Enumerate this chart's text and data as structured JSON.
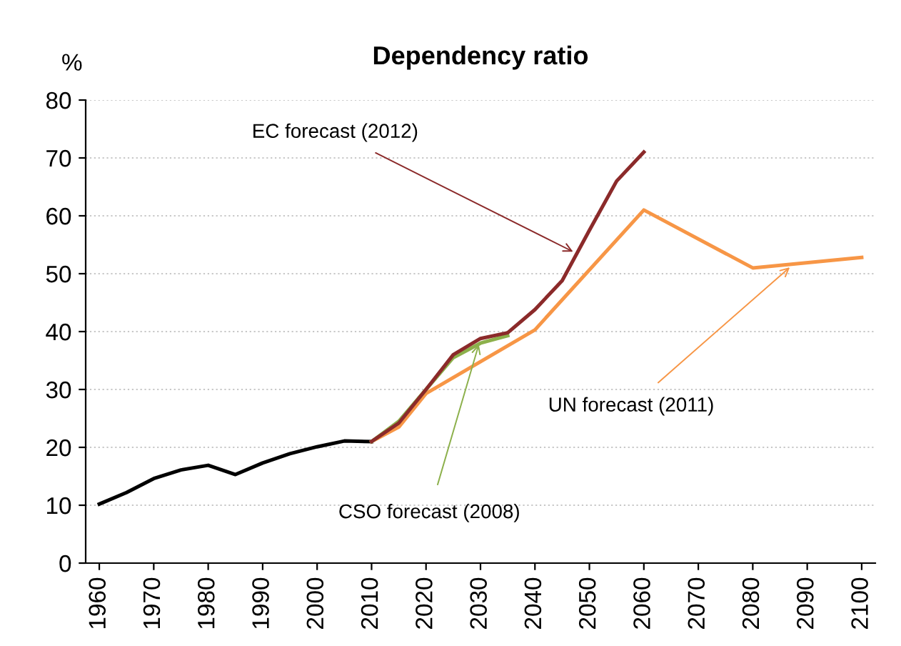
{
  "chart_data": {
    "type": "line",
    "title": "Dependency ratio",
    "ylabel": "%",
    "xlim": [
      1957.5,
      2102.5
    ],
    "xticks": [
      1960,
      1970,
      1980,
      1990,
      2000,
      2010,
      2020,
      2030,
      2040,
      2050,
      2060,
      2070,
      2080,
      2090,
      2100
    ],
    "ylim": [
      0,
      80
    ],
    "yticks": [
      0,
      10,
      20,
      30,
      40,
      50,
      60,
      70,
      80
    ],
    "grid": "y",
    "legend": false,
    "series": [
      {
        "color": "#000000",
        "x": [
          1960,
          1965,
          1970,
          1975,
          1980,
          1985,
          1990,
          1995,
          2000,
          2005,
          2010
        ],
        "values": [
          10.2,
          12.2,
          14.6,
          16.1,
          16.9,
          15.3,
          17.3,
          18.9,
          20.1,
          21.1,
          21.0
        ]
      },
      {
        "color": "#f79646",
        "x": [
          2010,
          2015,
          2020,
          2040,
          2060,
          2080,
          2100
        ],
        "values": [
          21.0,
          23.5,
          29.3,
          40.3,
          61,
          51,
          52.8
        ]
      },
      {
        "color": "#8cb04b",
        "x": [
          2010,
          2015,
          2020,
          2025,
          2030,
          2035
        ],
        "values": [
          21.0,
          24.5,
          30,
          35.5,
          38,
          39.3
        ]
      },
      {
        "color": "#8b2a2a",
        "x": [
          2010,
          2015,
          2020,
          2025,
          2030,
          2035,
          2040,
          2045,
          2050,
          2055,
          2060
        ],
        "values": [
          21.0,
          24.2,
          30,
          36,
          38.8,
          39.8,
          43.8,
          48.8,
          57.5,
          66,
          71
        ]
      }
    ],
    "annotations": [
      {
        "text": "EC forecast (2012)",
        "x": 2047,
        "y": 53.8
      },
      {
        "text": "CSO forecast (2008)",
        "x": 2029.7,
        "y": 37.8
      },
      {
        "text": "UN forecast (2011)",
        "x": 2086.8,
        "y": 51.1
      }
    ]
  }
}
